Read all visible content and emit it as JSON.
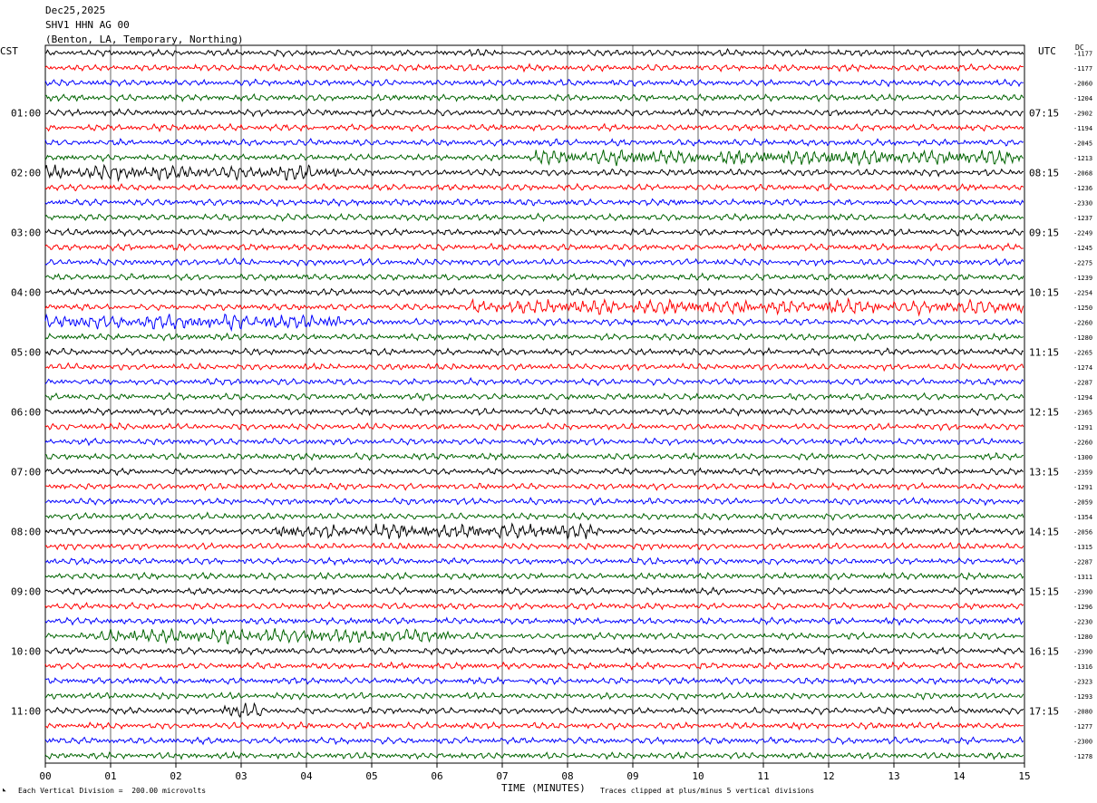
{
  "header": {
    "date": "Dec25,2025",
    "station": "SHV1 HHN AG 00",
    "location": "(Benton, LA, Temporary, Northing)"
  },
  "left_zone": "CST",
  "right_zone": "UTC",
  "dc_label": "DC",
  "footer": {
    "scale_note": "Each Vertical Division =  200.00 microvolts",
    "xlabel": "TIME (MINUTES)",
    "clip_note": "Traces clipped at plus/minus 5 vertical divisions"
  },
  "trace_colors": [
    "#000000",
    "#ff0000",
    "#0000ff",
    "#006400"
  ],
  "chart_data": {
    "type": "line",
    "title": "SHV1 HHN AG 00",
    "xlabel": "TIME (MINUTES)",
    "xlim": [
      0,
      15
    ],
    "x_ticks": [
      "00",
      "01",
      "02",
      "03",
      "04",
      "05",
      "06",
      "07",
      "08",
      "09",
      "10",
      "11",
      "12",
      "13",
      "14",
      "15"
    ],
    "left_hour_labels": [
      "01:00",
      "02:00",
      "03:00",
      "04:00",
      "05:00",
      "06:00",
      "07:00",
      "08:00",
      "09:00",
      "10:00",
      "11:00"
    ],
    "right_hour_labels": [
      "07:15",
      "08:15",
      "09:15",
      "10:15",
      "11:15",
      "12:15",
      "13:15",
      "14:15",
      "15:15",
      "16:15",
      "17:15"
    ],
    "trace_count": 48,
    "dc_offsets": [
      "-1177",
      "-1177",
      "-2060",
      "-1204",
      "-2902",
      "-1194",
      "-2045",
      "-1213",
      "-2068",
      "-1236",
      "-2330",
      "-1237",
      "-2249",
      "-1245",
      "-2275",
      "-1239",
      "-2254",
      "-1250",
      "-2260",
      "-1280",
      "-2265",
      "-1274",
      "-2287",
      "-1294",
      "-2365",
      "-1291",
      "-2260",
      "-1300",
      "-2359",
      "-1291",
      "-2059",
      "-1354",
      "-2056",
      "-1315",
      "-2287",
      "-1311",
      "-2390",
      "-1296",
      "-2230",
      "-1280",
      "-2390",
      "-1316",
      "-2323",
      "-1293",
      "-2080",
      "-1277",
      "-2300",
      "-1278"
    ],
    "high_activity_segments": [
      {
        "trace": 7,
        "from_min": 7.5,
        "to_min": 15
      },
      {
        "trace": 8,
        "from_min": 0,
        "to_min": 4.5
      },
      {
        "trace": 17,
        "from_min": 6.5,
        "to_min": 15
      },
      {
        "trace": 18,
        "from_min": 0,
        "to_min": 4.5
      },
      {
        "trace": 32,
        "from_min": 3.5,
        "to_min": 8.5
      },
      {
        "trace": 39,
        "from_min": 0.8,
        "to_min": 6.2
      },
      {
        "trace": 44,
        "from_min": 2.7,
        "to_min": 3.3
      }
    ],
    "scale_microvolts_per_division": 200.0,
    "clip_divisions": 5
  }
}
